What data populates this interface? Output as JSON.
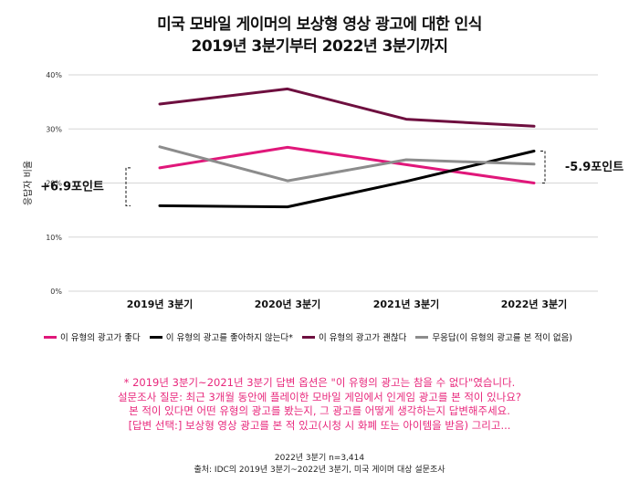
{
  "title_line1": "미국 모바일 게이머의 보상형 영상 광고에 대한 인식",
  "title_line2": "2019년 3분기부터 2022년 3분기까지",
  "chart_data": {
    "type": "line",
    "title": "미국 모바일 게이머의 보상형 영상 광고에 대한 인식 2019년 3분기부터 2022년 3분기까지",
    "xlabel": "",
    "ylabel": "응답자 비율",
    "categories": [
      "2019년 3분기",
      "2020년 3분기",
      "2021년 3분기",
      "2022년 3분기"
    ],
    "y_ticks": [
      "0%",
      "10%",
      "20%",
      "30%",
      "40%"
    ],
    "ylim": [
      0,
      40
    ],
    "grid": true,
    "legend_position": "bottom",
    "series": [
      {
        "name": "이 유형의 광고가 좋다",
        "color": "#e0177a",
        "values": [
          22.8,
          26.6,
          23.4,
          20.0
        ]
      },
      {
        "name": "이 유형의 광고를 좋아하지 않는다*",
        "color": "#000000",
        "values": [
          15.8,
          15.6,
          20.3,
          25.9
        ]
      },
      {
        "name": "이 유형의 광고가 괜찮다",
        "color": "#6e0f3f",
        "values": [
          34.6,
          37.4,
          31.8,
          30.5
        ]
      },
      {
        "name": "무응답(이 유형의 광고를 본 적이 없음)",
        "color": "#8c8c8c",
        "values": [
          26.7,
          20.4,
          24.3,
          23.5
        ]
      }
    ],
    "annotations": [
      "+6.9포인트",
      "-5.9포인트"
    ]
  },
  "notes": [
    "* 2019년 3분기~2021년 3분기 답변 옵션은 \"이 유형의 광고는 참을 수 없다\"였습니다.",
    "설문조사 질문: 최근 3개월 동안에 플레이한 모바일 게임에서 인게임 광고를 본 적이 있나요?",
    "본 적이 있다면 어떤 유형의 광고를 봤는지, 그 광고를 어떻게 생각하는지 답변해주세요.",
    "[답변 선택:] 보상형 영상 광고를 본 적 있고(시청 시 화폐 또는 아이템을 받음) 그리고..."
  ],
  "source_line1": "2022년 3분기 n=3,414",
  "source_line2": "출처: IDC의 2019년 3분기~2022년 3분기, 미국 게이머 대상 설문조사"
}
